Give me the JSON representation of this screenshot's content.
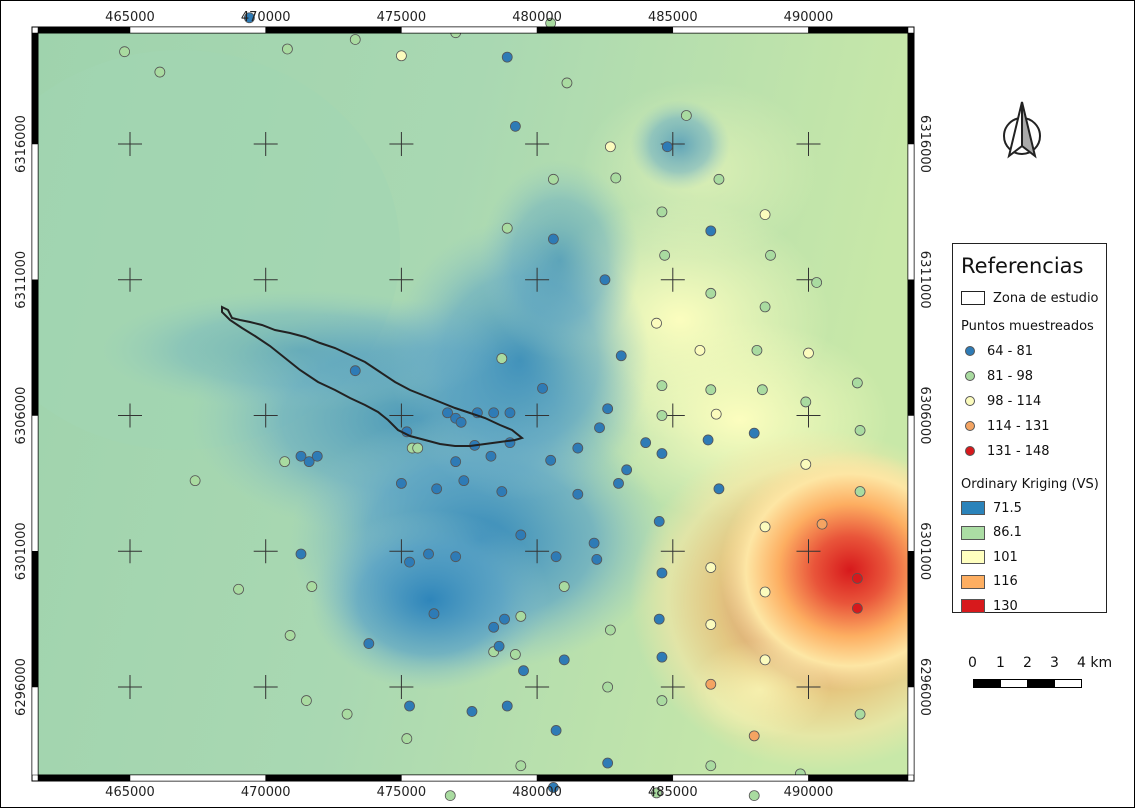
{
  "map": {
    "x_ticks": [
      "465000",
      "470000",
      "475000",
      "480000",
      "485000",
      "490000"
    ],
    "y_ticks": [
      "6316000",
      "6311000",
      "6306000",
      "6301000",
      "6296000"
    ]
  },
  "legend": {
    "title": "Referencias",
    "zone_label": "Zona de estudio",
    "points_header": "Puntos muestreados",
    "points": [
      {
        "label": "64 - 81",
        "color": "#2e7bb6"
      },
      {
        "label": "81 - 98",
        "color": "#a9dba0"
      },
      {
        "label": "98 - 114",
        "color": "#fbfbbd"
      },
      {
        "label": "114 - 131",
        "color": "#f4a462"
      },
      {
        "label": "131 - 148",
        "color": "#d7191c"
      }
    ],
    "kriging_header": "Ordinary Kriging (VS)",
    "kriging": [
      {
        "label": "71.5",
        "color": "#2b83ba"
      },
      {
        "label": "86.1",
        "color": "#abdda4"
      },
      {
        "label": "101",
        "color": "#ffffbf"
      },
      {
        "label": "116",
        "color": "#fdae61"
      },
      {
        "label": "130",
        "color": "#d7191c"
      }
    ]
  },
  "scale": {
    "labels": [
      "0",
      "1",
      "2",
      "3",
      "4 km"
    ]
  },
  "north_arrow_icon": "north-arrow-icon",
  "points_data": [
    {
      "x": 469400,
      "y": 6320650,
      "c": 0
    },
    {
      "x": 464800,
      "y": 6319400,
      "c": 1
    },
    {
      "x": 466100,
      "y": 6318650,
      "c": 1
    },
    {
      "x": 470800,
      "y": 6319500,
      "c": 1
    },
    {
      "x": 473300,
      "y": 6319850,
      "c": 1
    },
    {
      "x": 475000,
      "y": 6319250,
      "c": 2
    },
    {
      "x": 477000,
      "y": 6320100,
      "c": 1
    },
    {
      "x": 478900,
      "y": 6319200,
      "c": 0
    },
    {
      "x": 480500,
      "y": 6320450,
      "c": 1
    },
    {
      "x": 481100,
      "y": 6318250,
      "c": 1
    },
    {
      "x": 479200,
      "y": 6316650,
      "c": 0
    },
    {
      "x": 482700,
      "y": 6315900,
      "c": 2
    },
    {
      "x": 485500,
      "y": 6317050,
      "c": 1
    },
    {
      "x": 484800,
      "y": 6315900,
      "c": 0
    },
    {
      "x": 480600,
      "y": 6314700,
      "c": 1
    },
    {
      "x": 482900,
      "y": 6314750,
      "c": 1
    },
    {
      "x": 484600,
      "y": 6313500,
      "c": 1
    },
    {
      "x": 486700,
      "y": 6314700,
      "c": 1
    },
    {
      "x": 488400,
      "y": 6313400,
      "c": 2
    },
    {
      "x": 478900,
      "y": 6312900,
      "c": 1
    },
    {
      "x": 480600,
      "y": 6312500,
      "c": 0
    },
    {
      "x": 486400,
      "y": 6312800,
      "c": 0
    },
    {
      "x": 484700,
      "y": 6311900,
      "c": 1
    },
    {
      "x": 488600,
      "y": 6311900,
      "c": 1
    },
    {
      "x": 482500,
      "y": 6311000,
      "c": 0
    },
    {
      "x": 486400,
      "y": 6310500,
      "c": 1
    },
    {
      "x": 488400,
      "y": 6310000,
      "c": 1
    },
    {
      "x": 490300,
      "y": 6310900,
      "c": 1
    },
    {
      "x": 484400,
      "y": 6309400,
      "c": 2
    },
    {
      "x": 486000,
      "y": 6308400,
      "c": 2
    },
    {
      "x": 488100,
      "y": 6308400,
      "c": 1
    },
    {
      "x": 490000,
      "y": 6308300,
      "c": 2
    },
    {
      "x": 483100,
      "y": 6308200,
      "c": 0
    },
    {
      "x": 478700,
      "y": 6308100,
      "c": 1
    },
    {
      "x": 473300,
      "y": 6307650,
      "c": 0
    },
    {
      "x": 480200,
      "y": 6307000,
      "c": 0
    },
    {
      "x": 484600,
      "y": 6307100,
      "c": 1
    },
    {
      "x": 486400,
      "y": 6306950,
      "c": 1
    },
    {
      "x": 488300,
      "y": 6306950,
      "c": 1
    },
    {
      "x": 491800,
      "y": 6307200,
      "c": 1
    },
    {
      "x": 489900,
      "y": 6306500,
      "c": 1
    },
    {
      "x": 477800,
      "y": 6306100,
      "c": 0
    },
    {
      "x": 478400,
      "y": 6306100,
      "c": 0
    },
    {
      "x": 479000,
      "y": 6306100,
      "c": 0
    },
    {
      "x": 476700,
      "y": 6306100,
      "c": 0
    },
    {
      "x": 477000,
      "y": 6305900,
      "c": 0
    },
    {
      "x": 477200,
      "y": 6305750,
      "c": 0
    },
    {
      "x": 482600,
      "y": 6306250,
      "c": 0
    },
    {
      "x": 484600,
      "y": 6306000,
      "c": 1
    },
    {
      "x": 486600,
      "y": 6306050,
      "c": 2
    },
    {
      "x": 488000,
      "y": 6305350,
      "c": 0
    },
    {
      "x": 491900,
      "y": 6305450,
      "c": 1
    },
    {
      "x": 475200,
      "y": 6305400,
      "c": 0
    },
    {
      "x": 475400,
      "y": 6304800,
      "c": 1
    },
    {
      "x": 475600,
      "y": 6304800,
      "c": 1
    },
    {
      "x": 477700,
      "y": 6304900,
      "c": 0
    },
    {
      "x": 479000,
      "y": 6305000,
      "c": 0
    },
    {
      "x": 482300,
      "y": 6305550,
      "c": 0
    },
    {
      "x": 484000,
      "y": 6305000,
      "c": 0
    },
    {
      "x": 486300,
      "y": 6305100,
      "c": 0
    },
    {
      "x": 471300,
      "y": 6304500,
      "c": 0
    },
    {
      "x": 471600,
      "y": 6304300,
      "c": 0
    },
    {
      "x": 471900,
      "y": 6304500,
      "c": 0
    },
    {
      "x": 470700,
      "y": 6304300,
      "c": 1
    },
    {
      "x": 477000,
      "y": 6304300,
      "c": 0
    },
    {
      "x": 478300,
      "y": 6304500,
      "c": 0
    },
    {
      "x": 480500,
      "y": 6304350,
      "c": 0
    },
    {
      "x": 481500,
      "y": 6304800,
      "c": 0
    },
    {
      "x": 483300,
      "y": 6304000,
      "c": 0
    },
    {
      "x": 484600,
      "y": 6304600,
      "c": 0
    },
    {
      "x": 489900,
      "y": 6304200,
      "c": 2
    },
    {
      "x": 467400,
      "y": 6303600,
      "c": 1
    },
    {
      "x": 475000,
      "y": 6303500,
      "c": 0
    },
    {
      "x": 476300,
      "y": 6303300,
      "c": 0
    },
    {
      "x": 477300,
      "y": 6303600,
      "c": 0
    },
    {
      "x": 478700,
      "y": 6303200,
      "c": 0
    },
    {
      "x": 481500,
      "y": 6303100,
      "c": 0
    },
    {
      "x": 483000,
      "y": 6303500,
      "c": 0
    },
    {
      "x": 486700,
      "y": 6303300,
      "c": 0
    },
    {
      "x": 491900,
      "y": 6303200,
      "c": 1
    },
    {
      "x": 484500,
      "y": 6302100,
      "c": 0
    },
    {
      "x": 488400,
      "y": 6301900,
      "c": 2
    },
    {
      "x": 490500,
      "y": 6302000,
      "c": 3
    },
    {
      "x": 479400,
      "y": 6301600,
      "c": 0
    },
    {
      "x": 482100,
      "y": 6301300,
      "c": 0
    },
    {
      "x": 471300,
      "y": 6300900,
      "c": 0
    },
    {
      "x": 475300,
      "y": 6300600,
      "c": 0
    },
    {
      "x": 476000,
      "y": 6300900,
      "c": 0
    },
    {
      "x": 477000,
      "y": 6300800,
      "c": 0
    },
    {
      "x": 480700,
      "y": 6300800,
      "c": 0
    },
    {
      "x": 482200,
      "y": 6300700,
      "c": 0
    },
    {
      "x": 484600,
      "y": 6300200,
      "c": 0
    },
    {
      "x": 486400,
      "y": 6300400,
      "c": 2
    },
    {
      "x": 491800,
      "y": 6300000,
      "c": 4
    },
    {
      "x": 469000,
      "y": 6299600,
      "c": 1
    },
    {
      "x": 471700,
      "y": 6299700,
      "c": 1
    },
    {
      "x": 481000,
      "y": 6299700,
      "c": 1
    },
    {
      "x": 488400,
      "y": 6299500,
      "c": 2
    },
    {
      "x": 491800,
      "y": 6298900,
      "c": 4
    },
    {
      "x": 476200,
      "y": 6298700,
      "c": 0
    },
    {
      "x": 478800,
      "y": 6298500,
      "c": 0
    },
    {
      "x": 479400,
      "y": 6298600,
      "c": 1
    },
    {
      "x": 478400,
      "y": 6298200,
      "c": 0
    },
    {
      "x": 482700,
      "y": 6298100,
      "c": 1
    },
    {
      "x": 484500,
      "y": 6298500,
      "c": 0
    },
    {
      "x": 486400,
      "y": 6298300,
      "c": 2
    },
    {
      "x": 470900,
      "y": 6297900,
      "c": 1
    },
    {
      "x": 473800,
      "y": 6297600,
      "c": 0
    },
    {
      "x": 478400,
      "y": 6297300,
      "c": 1
    },
    {
      "x": 478600,
      "y": 6297500,
      "c": 0
    },
    {
      "x": 479200,
      "y": 6297200,
      "c": 1
    },
    {
      "x": 479500,
      "y": 6296600,
      "c": 0
    },
    {
      "x": 481000,
      "y": 6297000,
      "c": 0
    },
    {
      "x": 484600,
      "y": 6297100,
      "c": 0
    },
    {
      "x": 488400,
      "y": 6297000,
      "c": 2
    },
    {
      "x": 486400,
      "y": 6296100,
      "c": 3
    },
    {
      "x": 482600,
      "y": 6296000,
      "c": 1
    },
    {
      "x": 471500,
      "y": 6295500,
      "c": 1
    },
    {
      "x": 473000,
      "y": 6295000,
      "c": 1
    },
    {
      "x": 475300,
      "y": 6295300,
      "c": 0
    },
    {
      "x": 477600,
      "y": 6295100,
      "c": 0
    },
    {
      "x": 478900,
      "y": 6295300,
      "c": 0
    },
    {
      "x": 484600,
      "y": 6295500,
      "c": 1
    },
    {
      "x": 491900,
      "y": 6295000,
      "c": 1
    },
    {
      "x": 475200,
      "y": 6294100,
      "c": 1
    },
    {
      "x": 480700,
      "y": 6294400,
      "c": 0
    },
    {
      "x": 488000,
      "y": 6294200,
      "c": 3
    },
    {
      "x": 479400,
      "y": 6293100,
      "c": 1
    },
    {
      "x": 482600,
      "y": 6293200,
      "c": 0
    },
    {
      "x": 486400,
      "y": 6293100,
      "c": 1
    },
    {
      "x": 489700,
      "y": 6292800,
      "c": 1
    },
    {
      "x": 476800,
      "y": 6292000,
      "c": 1
    },
    {
      "x": 480600,
      "y": 6292300,
      "c": 0
    },
    {
      "x": 484400,
      "y": 6292100,
      "c": 1
    },
    {
      "x": 488000,
      "y": 6292000,
      "c": 1
    }
  ]
}
